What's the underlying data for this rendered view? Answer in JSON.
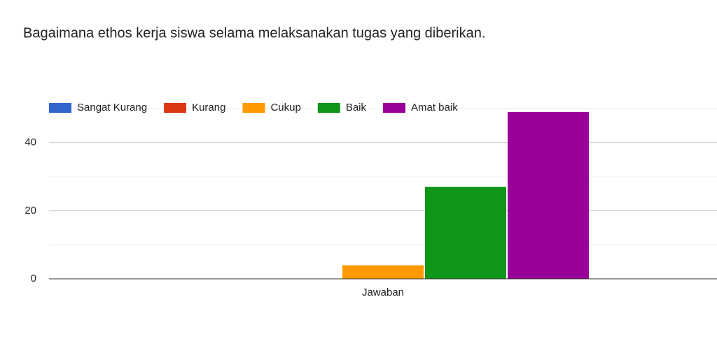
{
  "chart_data": {
    "type": "bar",
    "title": "Bagaimana ethos kerja siswa selama melaksanakan tugas yang diberikan.",
    "categories": [
      "Jawaban"
    ],
    "series": [
      {
        "name": "Sangat Kurang",
        "color": "#3366cc",
        "values": [
          0
        ]
      },
      {
        "name": "Kurang",
        "color": "#dc3912",
        "values": [
          0
        ]
      },
      {
        "name": "Cukup",
        "color": "#ff9900",
        "values": [
          4
        ]
      },
      {
        "name": "Baik",
        "color": "#109618",
        "values": [
          27
        ]
      },
      {
        "name": "Amat baik",
        "color": "#990099",
        "values": [
          49
        ]
      }
    ],
    "ylim": [
      0,
      50
    ],
    "yticks": [
      0,
      20,
      40
    ],
    "minor_gridlines": [
      10,
      30,
      50
    ],
    "grid": true,
    "legend": "top"
  }
}
